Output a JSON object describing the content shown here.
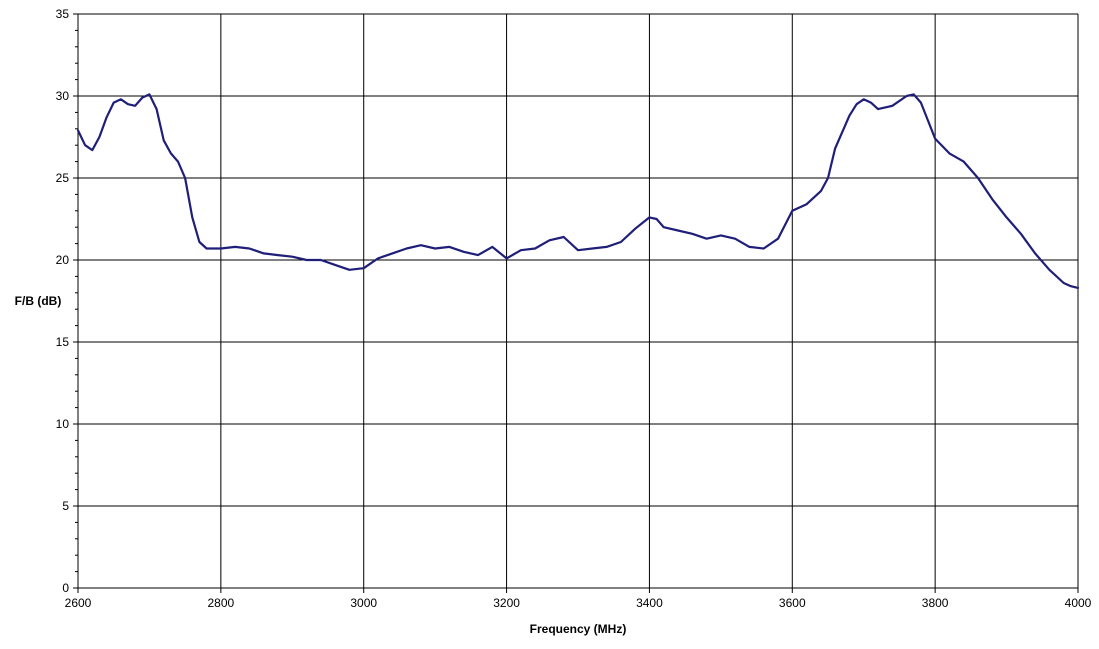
{
  "chart_data": {
    "type": "line",
    "title": "",
    "xlabel": "Frequency (MHz)",
    "ylabel": "F/B (dB)",
    "xlim": [
      2600,
      4000
    ],
    "ylim": [
      0,
      35
    ],
    "x_ticks": [
      2600,
      2800,
      3000,
      3200,
      3400,
      3600,
      3800,
      4000
    ],
    "y_ticks": [
      0,
      5,
      10,
      15,
      20,
      25,
      30,
      35
    ],
    "grid": true,
    "legend": "none",
    "series_color": "#1f1f7a",
    "series": [
      {
        "points": [
          [
            2600,
            27.9
          ],
          [
            2610,
            27.0
          ],
          [
            2620,
            26.7
          ],
          [
            2630,
            27.5
          ],
          [
            2640,
            28.7
          ],
          [
            2650,
            29.6
          ],
          [
            2660,
            29.8
          ],
          [
            2670,
            29.5
          ],
          [
            2680,
            29.4
          ],
          [
            2690,
            29.9
          ],
          [
            2700,
            30.1
          ],
          [
            2710,
            29.2
          ],
          [
            2720,
            27.3
          ],
          [
            2730,
            26.5
          ],
          [
            2740,
            26.0
          ],
          [
            2750,
            25.0
          ],
          [
            2760,
            22.6
          ],
          [
            2770,
            21.1
          ],
          [
            2780,
            20.7
          ],
          [
            2800,
            20.7
          ],
          [
            2820,
            20.8
          ],
          [
            2840,
            20.7
          ],
          [
            2860,
            20.4
          ],
          [
            2880,
            20.3
          ],
          [
            2900,
            20.2
          ],
          [
            2920,
            20.0
          ],
          [
            2940,
            20.0
          ],
          [
            2960,
            19.7
          ],
          [
            2980,
            19.4
          ],
          [
            3000,
            19.5
          ],
          [
            3020,
            20.1
          ],
          [
            3040,
            20.4
          ],
          [
            3060,
            20.7
          ],
          [
            3080,
            20.9
          ],
          [
            3100,
            20.7
          ],
          [
            3120,
            20.8
          ],
          [
            3140,
            20.5
          ],
          [
            3160,
            20.3
          ],
          [
            3180,
            20.8
          ],
          [
            3200,
            20.1
          ],
          [
            3220,
            20.6
          ],
          [
            3240,
            20.7
          ],
          [
            3260,
            21.2
          ],
          [
            3280,
            21.4
          ],
          [
            3300,
            20.6
          ],
          [
            3320,
            20.7
          ],
          [
            3340,
            20.8
          ],
          [
            3360,
            21.1
          ],
          [
            3380,
            21.9
          ],
          [
            3400,
            22.6
          ],
          [
            3410,
            22.5
          ],
          [
            3420,
            22.0
          ],
          [
            3440,
            21.8
          ],
          [
            3460,
            21.6
          ],
          [
            3480,
            21.3
          ],
          [
            3500,
            21.5
          ],
          [
            3520,
            21.3
          ],
          [
            3540,
            20.8
          ],
          [
            3560,
            20.7
          ],
          [
            3580,
            21.3
          ],
          [
            3600,
            23.0
          ],
          [
            3620,
            23.4
          ],
          [
            3640,
            24.2
          ],
          [
            3650,
            25.0
          ],
          [
            3660,
            26.8
          ],
          [
            3680,
            28.8
          ],
          [
            3690,
            29.5
          ],
          [
            3700,
            29.8
          ],
          [
            3710,
            29.6
          ],
          [
            3720,
            29.2
          ],
          [
            3740,
            29.4
          ],
          [
            3760,
            30.0
          ],
          [
            3770,
            30.1
          ],
          [
            3780,
            29.6
          ],
          [
            3790,
            28.5
          ],
          [
            3800,
            27.4
          ],
          [
            3820,
            26.5
          ],
          [
            3840,
            26.0
          ],
          [
            3860,
            25.0
          ],
          [
            3880,
            23.7
          ],
          [
            3900,
            22.6
          ],
          [
            3920,
            21.6
          ],
          [
            3940,
            20.4
          ],
          [
            3960,
            19.4
          ],
          [
            3980,
            18.6
          ],
          [
            3990,
            18.4
          ],
          [
            4000,
            18.3
          ]
        ]
      }
    ]
  }
}
